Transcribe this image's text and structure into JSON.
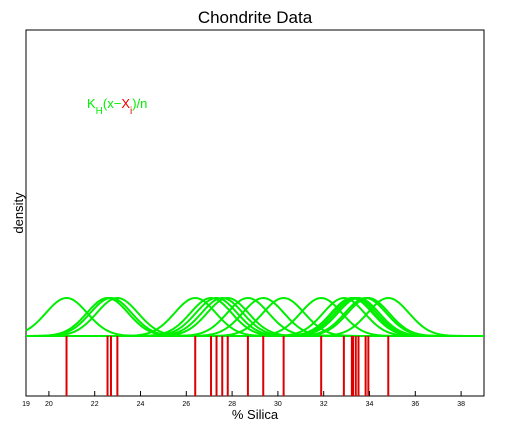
{
  "chart_data": {
    "type": "line",
    "title": "Chondrite Data",
    "xlabel": "% Silica",
    "ylabel": "density",
    "xlim": [
      19,
      39
    ],
    "xticks": [
      19,
      20,
      22,
      24,
      26,
      28,
      30,
      32,
      34,
      36,
      38
    ],
    "grid": false,
    "annotation": {
      "parts": [
        {
          "text": "K",
          "color": "#00ee00"
        },
        {
          "text": "H",
          "color": "#00ee00",
          "sub": true
        },
        {
          "text": "(x−",
          "color": "#00ee00"
        },
        {
          "text": "X",
          "color": "#ee0000"
        },
        {
          "text": "i",
          "color": "#ee0000",
          "sub": true
        },
        {
          "text": ")/n",
          "color": "#00ee00"
        }
      ]
    },
    "kernel_bandwidth": 0.9,
    "kernel_color": "#00ee00",
    "rug_color": "#dd0000",
    "observations": [
      20.77,
      22.56,
      22.71,
      22.99,
      26.39,
      27.08,
      27.32,
      27.57,
      27.81,
      28.69,
      29.36,
      30.25,
      31.89,
      32.88,
      33.23,
      33.28,
      33.4,
      33.52,
      33.83,
      33.95,
      34.82
    ]
  }
}
